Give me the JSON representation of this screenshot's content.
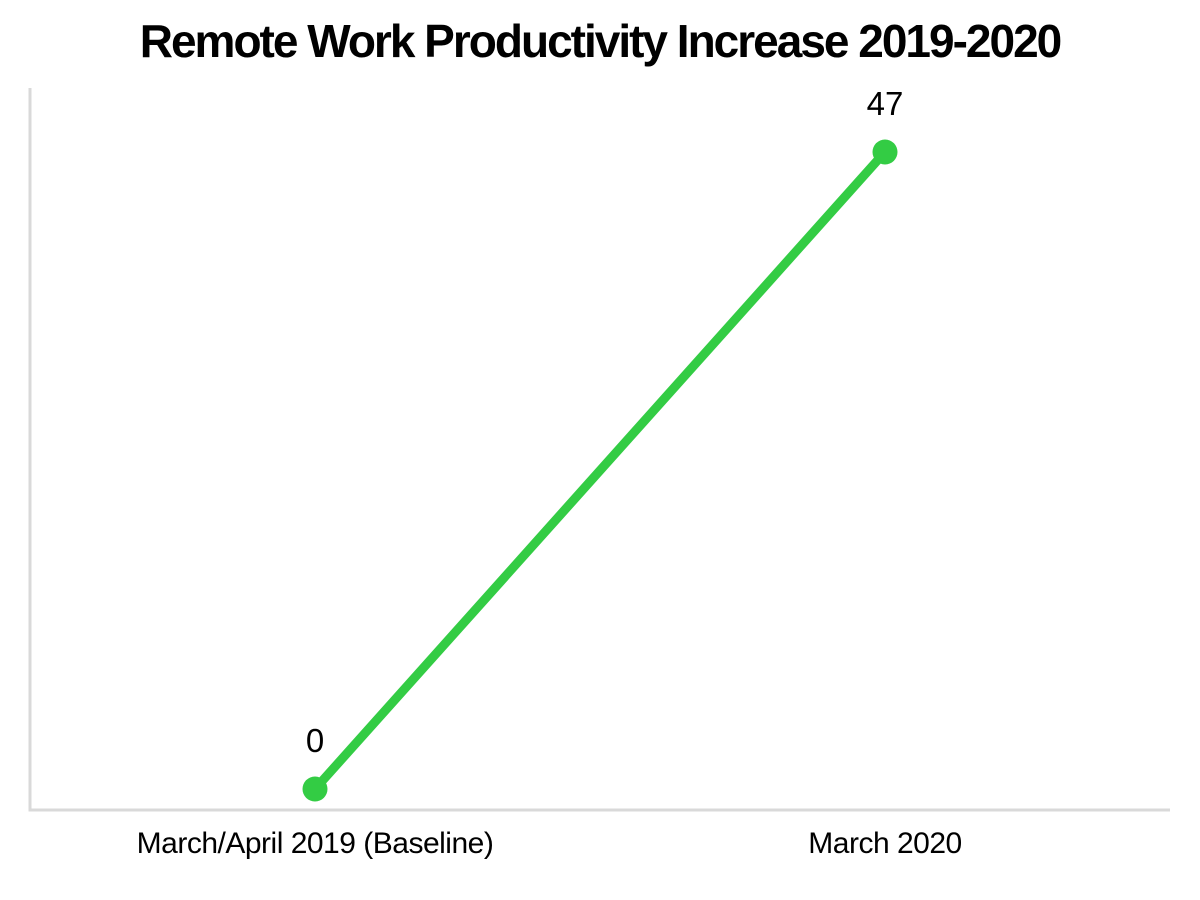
{
  "page": {
    "background": "#ffffff"
  },
  "chart_data": {
    "type": "line",
    "title": "Remote Work Productivity Increase 2019-2020",
    "categories": [
      "March/April 2019 (Baseline)",
      "March 2020"
    ],
    "values": [
      0,
      47
    ],
    "value_labels": [
      "0",
      "47"
    ],
    "xlabel": "",
    "ylabel": "",
    "legend": "none",
    "grid": false,
    "x_axis_visible": true,
    "y_axis_visible": true,
    "y_axis_tick_labels": "none",
    "line_color": "#33CC44",
    "marker_color": "#33CC44",
    "axis_color": "#D9D9D9",
    "text_color": "#000000"
  }
}
